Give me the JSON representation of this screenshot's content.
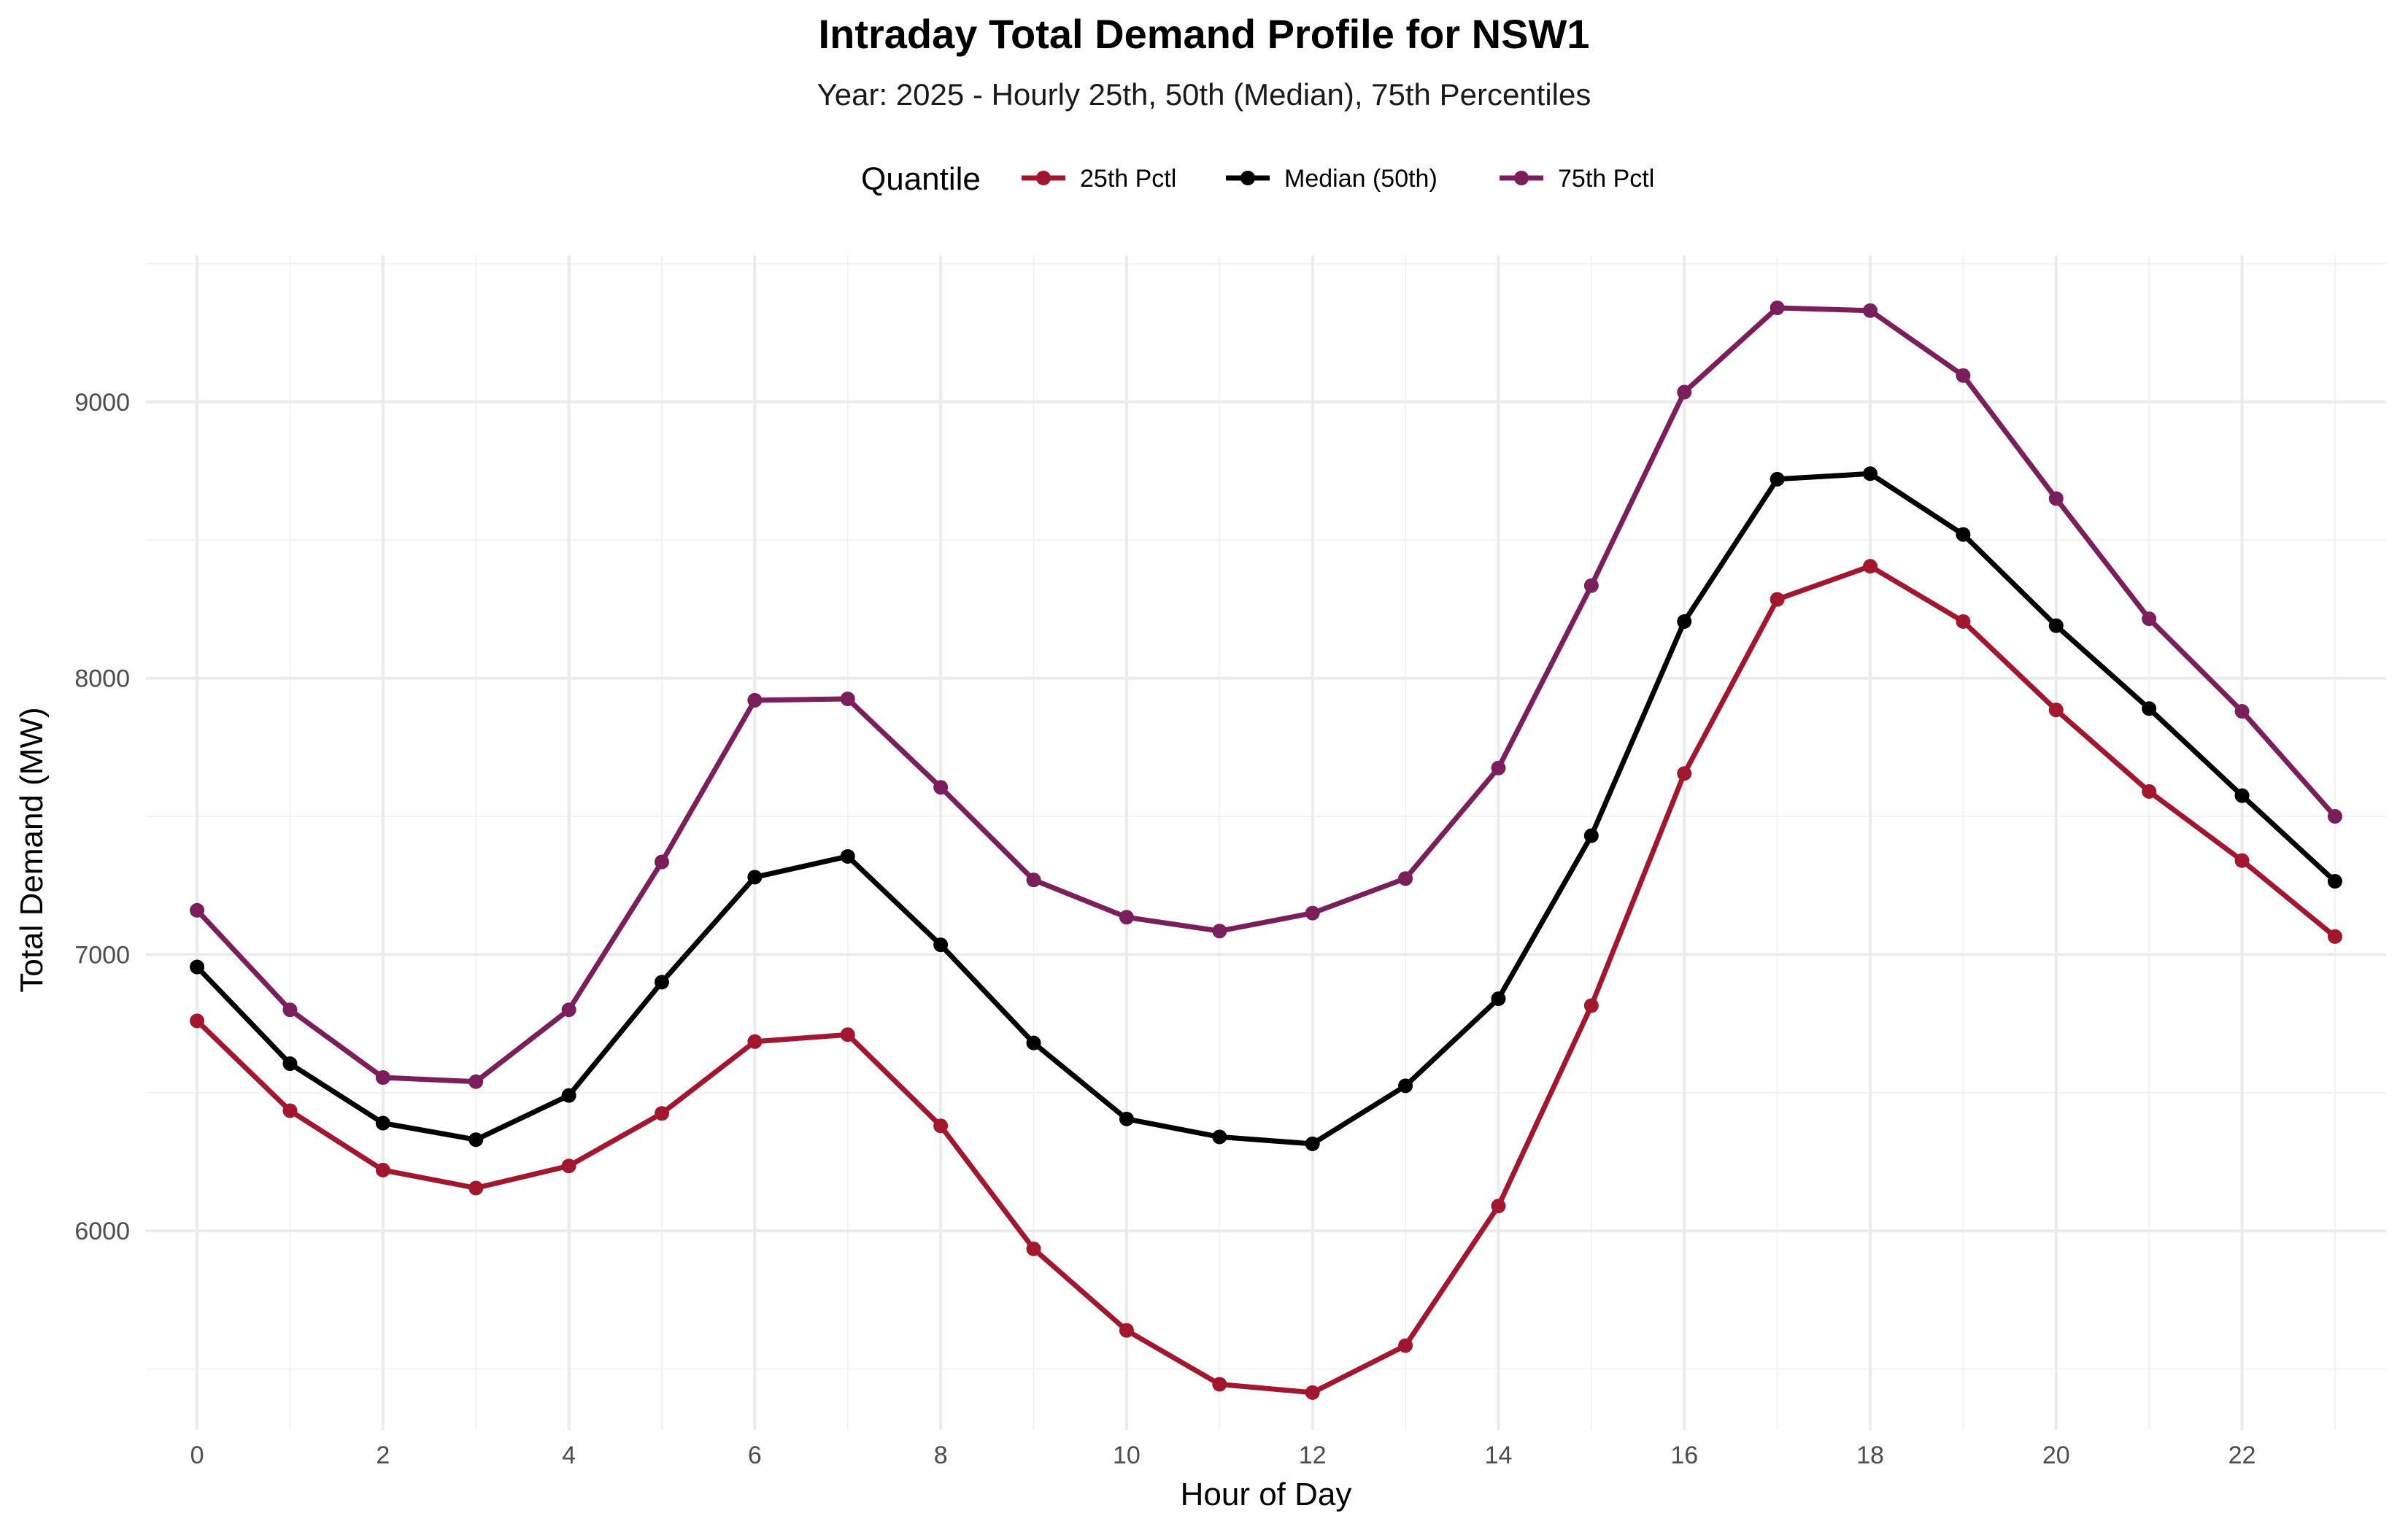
{
  "chart_data": {
    "type": "line",
    "title": "Intraday Total Demand Profile for NSW1",
    "subtitle": "Year: 2025 - Hourly 25th, 50th (Median), 75th Percentiles",
    "xlabel": "Hour of Day",
    "ylabel": "Total Demand (MW)",
    "legend_title": "Quantile",
    "legend_position": "top",
    "grid": true,
    "xlim": [
      -0.55,
      23.55
    ],
    "ylim": [
      5280,
      9530
    ],
    "x_ticks": [
      0,
      2,
      4,
      6,
      8,
      10,
      12,
      14,
      16,
      18,
      20,
      22
    ],
    "x_tick_labels": [
      "0",
      "2",
      "4",
      "6",
      "8",
      "10",
      "12",
      "14",
      "16",
      "18",
      "20",
      "22"
    ],
    "y_ticks": [
      6000,
      7000,
      8000,
      9000
    ],
    "y_tick_labels": [
      "6000",
      "7000",
      "8000",
      "9000"
    ],
    "x": [
      0,
      1,
      2,
      3,
      4,
      5,
      6,
      7,
      8,
      9,
      10,
      11,
      12,
      13,
      14,
      15,
      16,
      17,
      18,
      19,
      20,
      21,
      22,
      23
    ],
    "series": [
      {
        "name": "25th Pctl",
        "color": "#A3172E",
        "values": [
          6760,
          6435,
          6220,
          6155,
          6235,
          6425,
          6685,
          6710,
          6380,
          5935,
          5640,
          5445,
          5415,
          5585,
          6090,
          6815,
          7655,
          8285,
          8405,
          8205,
          7885,
          7590,
          7340,
          7065
        ]
      },
      {
        "name": "Median (50th)",
        "color": "#000000",
        "values": [
          6955,
          6605,
          6390,
          6330,
          6490,
          6900,
          7280,
          7355,
          7035,
          6680,
          6405,
          6340,
          6315,
          6525,
          6840,
          7430,
          8205,
          8720,
          8740,
          8520,
          8190,
          7890,
          7575,
          7265
        ]
      },
      {
        "name": "75th Pctl",
        "color": "#7B1E5C",
        "values": [
          7160,
          6800,
          6555,
          6540,
          6800,
          7335,
          7920,
          7925,
          7605,
          7270,
          7135,
          7085,
          7150,
          7275,
          7675,
          8335,
          9035,
          9340,
          9330,
          9095,
          8650,
          8215,
          7880,
          7500
        ]
      }
    ]
  }
}
